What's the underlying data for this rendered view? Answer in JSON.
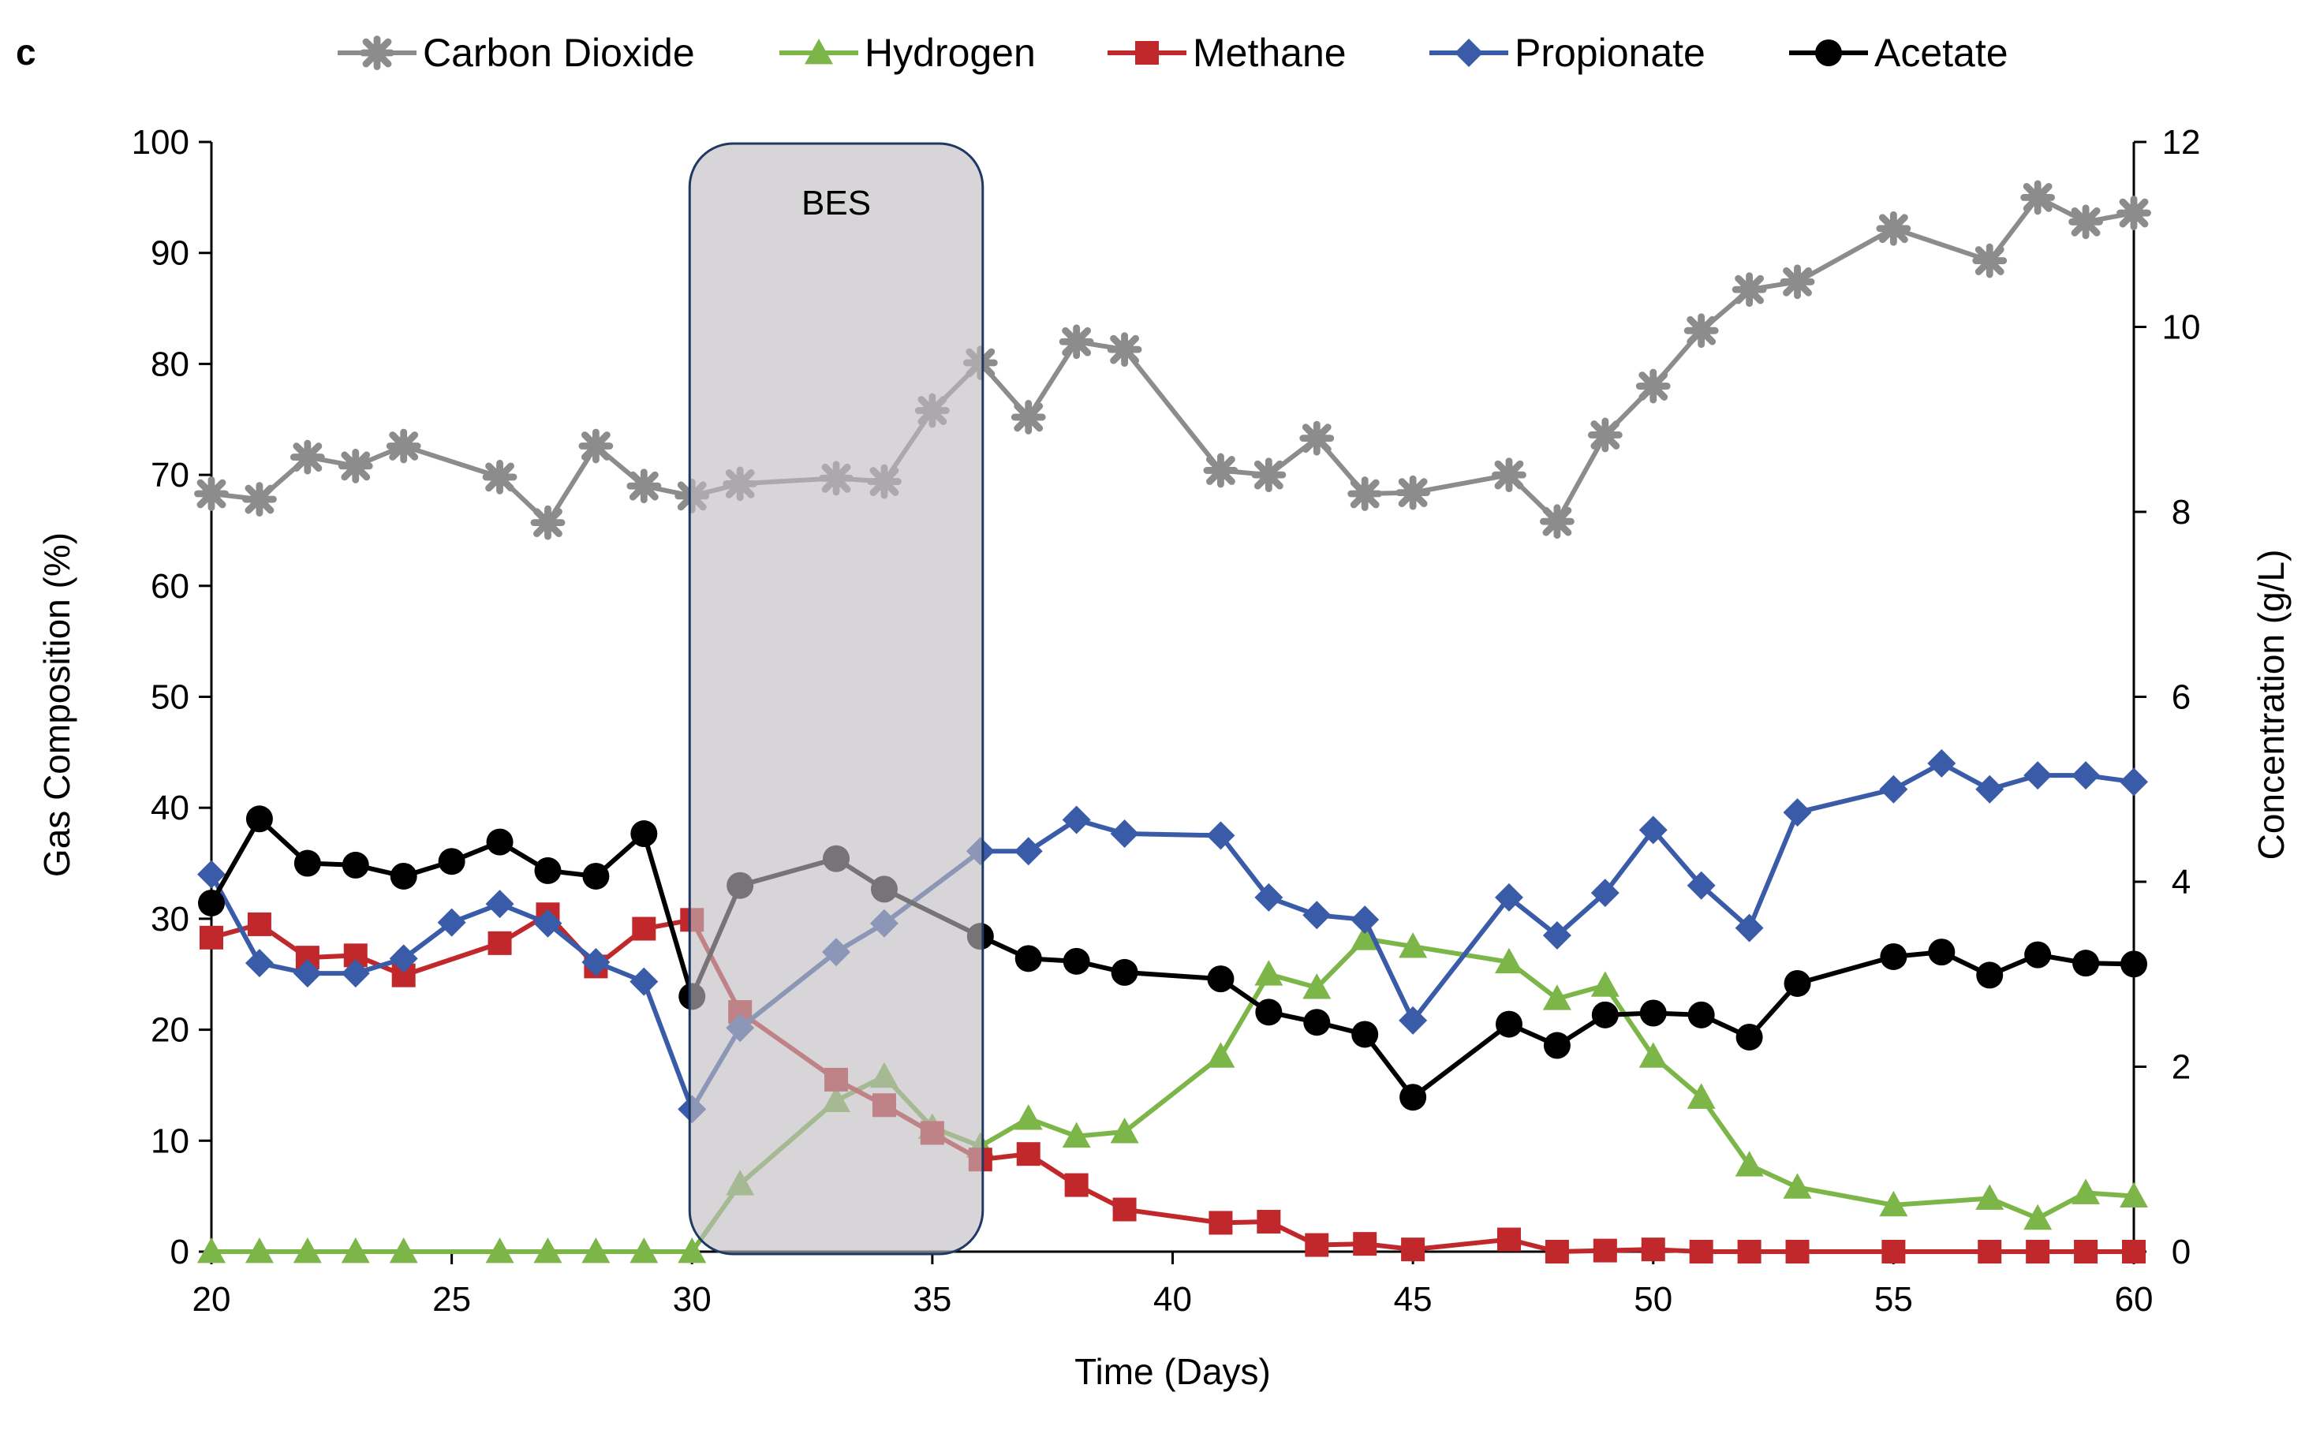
{
  "panel_label": "c",
  "chart_data": {
    "type": "line",
    "xlabel": "Time (Days)",
    "ylabel_left": "Gas Composition  (%)",
    "ylabel_right": "Concentration (g/L)",
    "xlim": [
      20,
      60
    ],
    "xticks": [
      20,
      25,
      30,
      35,
      40,
      45,
      50,
      55,
      60
    ],
    "ylim_left": [
      0,
      100
    ],
    "yticks_left": [
      0,
      10,
      20,
      30,
      40,
      50,
      60,
      70,
      80,
      90,
      100
    ],
    "ylim_right": [
      0,
      12
    ],
    "yticks_right": [
      0,
      2,
      4,
      6,
      8,
      10,
      12
    ],
    "annotation": {
      "label": "BES",
      "x_start": 30,
      "x_end": 36
    },
    "series": [
      {
        "name": "Carbon Dioxide",
        "axis": "left",
        "color": "#8c8c8c",
        "marker": "cross",
        "x": [
          20,
          21,
          22,
          23,
          24,
          26,
          27,
          28,
          29,
          30,
          31,
          33,
          34,
          35,
          36,
          37,
          38,
          39,
          41,
          42,
          43,
          44,
          45,
          47,
          48,
          49,
          50,
          51,
          52,
          53,
          55,
          57,
          58,
          59,
          60
        ],
        "y": [
          68.3,
          67.8,
          71.6,
          70.8,
          72.6,
          69.8,
          65.7,
          72.6,
          69.0,
          68.1,
          69.2,
          69.7,
          69.4,
          75.8,
          80.1,
          75.2,
          82.0,
          81.3,
          70.4,
          70.0,
          73.3,
          68.3,
          68.4,
          70.0,
          65.8,
          73.6,
          78.0,
          83.0,
          86.7,
          87.4,
          92.2,
          89.3,
          95.0,
          92.8,
          93.6
        ]
      },
      {
        "name": "Hydrogen",
        "axis": "left",
        "color": "#7cb548",
        "marker": "triangle",
        "x": [
          20,
          21,
          22,
          23,
          24,
          26,
          27,
          28,
          29,
          30,
          31,
          33,
          34,
          35,
          36,
          37,
          38,
          39,
          41,
          42,
          43,
          44,
          45,
          47,
          48,
          49,
          50,
          51,
          52,
          53,
          55,
          57,
          58,
          59,
          60
        ],
        "y": [
          0.0,
          0.0,
          0.0,
          0.0,
          0.0,
          0.0,
          0.0,
          0.0,
          0.0,
          0.0,
          6.1,
          13.6,
          15.8,
          11.2,
          9.5,
          12.0,
          10.4,
          10.8,
          17.6,
          25.0,
          23.8,
          28.2,
          27.5,
          26.1,
          22.8,
          24.0,
          17.6,
          13.9,
          7.8,
          5.8,
          4.2,
          4.8,
          3.0,
          5.3,
          5.0
        ]
      },
      {
        "name": "Methane",
        "axis": "left",
        "color": "#c0282b",
        "marker": "square",
        "x": [
          20,
          21,
          22,
          23,
          24,
          26,
          27,
          28,
          29,
          30,
          31,
          33,
          34,
          35,
          36,
          37,
          38,
          39,
          41,
          42,
          43,
          44,
          45,
          47,
          48,
          49,
          50,
          51,
          52,
          53,
          55,
          57,
          58,
          59,
          60
        ],
        "y": [
          28.3,
          29.5,
          26.5,
          26.7,
          24.9,
          27.8,
          30.4,
          25.7,
          29.1,
          29.9,
          21.6,
          15.5,
          13.2,
          10.7,
          8.3,
          8.8,
          6.0,
          3.8,
          2.6,
          2.7,
          0.6,
          0.7,
          0.2,
          1.1,
          0.0,
          0.1,
          0.2,
          0.0,
          0.0,
          0.0,
          0.0,
          0.0,
          0.0,
          0.0,
          0.0
        ]
      },
      {
        "name": "Propionate",
        "axis": "right",
        "color": "#3a5ca8",
        "marker": "diamond",
        "x": [
          20,
          21,
          22,
          23,
          24,
          25,
          26,
          27,
          28,
          29,
          30,
          31,
          33,
          34,
          36,
          37,
          38,
          39,
          41,
          42,
          43,
          44,
          45,
          47,
          48,
          49,
          50,
          51,
          52,
          53,
          55,
          56,
          57,
          58,
          59,
          60
        ],
        "y": [
          4.08,
          3.12,
          3.01,
          3.01,
          3.17,
          3.56,
          3.76,
          3.55,
          3.13,
          2.92,
          1.54,
          2.42,
          3.24,
          3.55,
          4.33,
          4.33,
          4.67,
          4.52,
          4.5,
          3.83,
          3.64,
          3.59,
          2.5,
          3.83,
          3.42,
          3.88,
          4.56,
          3.96,
          3.5,
          4.75,
          5.0,
          5.28,
          5.0,
          5.15,
          5.15,
          5.08
        ]
      },
      {
        "name": "Acetate",
        "axis": "right",
        "color": "#000000",
        "marker": "circle",
        "x": [
          20,
          21,
          22,
          23,
          24,
          25,
          26,
          27,
          28,
          29,
          30,
          31,
          33,
          34,
          36,
          37,
          38,
          39,
          41,
          42,
          43,
          44,
          45,
          47,
          48,
          49,
          50,
          51,
          52,
          53,
          55,
          56,
          57,
          58,
          59,
          60
        ],
        "y": [
          3.77,
          4.68,
          4.2,
          4.18,
          4.06,
          4.22,
          4.43,
          4.12,
          4.06,
          4.52,
          2.76,
          3.96,
          4.25,
          3.92,
          3.41,
          3.17,
          3.14,
          3.02,
          2.95,
          2.59,
          2.48,
          2.35,
          1.67,
          2.46,
          2.23,
          2.56,
          2.58,
          2.56,
          2.32,
          2.9,
          3.19,
          3.24,
          2.99,
          3.21,
          3.12,
          3.11
        ]
      }
    ]
  }
}
